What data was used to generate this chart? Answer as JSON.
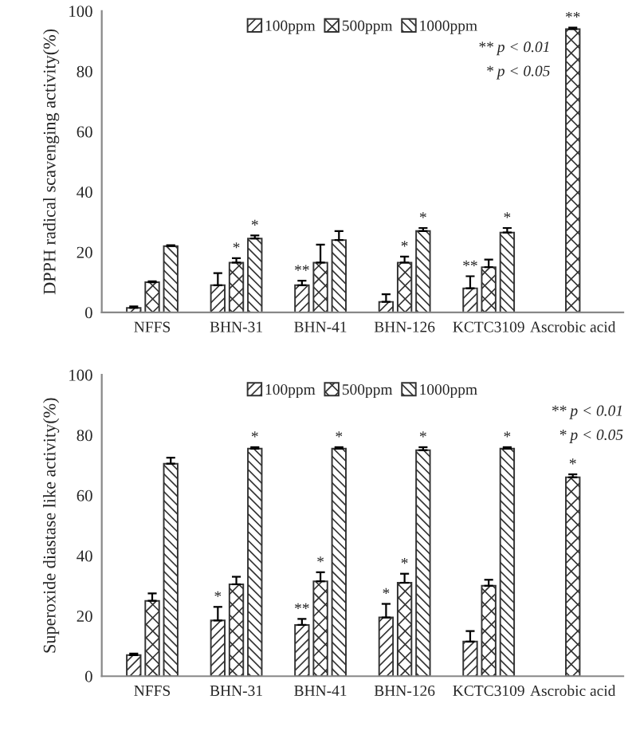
{
  "chart_data": [
    {
      "type": "bar",
      "ylabel": "DPPH radical scavenging activity(%)",
      "categories": [
        "NFFS",
        "BHN-31",
        "BHN-41",
        "BHN-126",
        "KCTC3109",
        "Ascrobic acid"
      ],
      "ylim": [
        0,
        100
      ],
      "yticks": [
        0,
        20,
        40,
        60,
        80,
        100
      ],
      "legend": "top",
      "grid": false,
      "series": [
        {
          "name": "100ppm",
          "color": "#333333",
          "values": [
            1.5,
            9,
            9,
            3.5,
            8,
            null
          ],
          "errors": [
            [
              1.5,
              2
            ],
            [
              9,
              13
            ],
            [
              9,
              10.5
            ],
            [
              3.5,
              6
            ],
            [
              8,
              12
            ],
            null
          ],
          "value_labels": [
            null,
            null,
            "**",
            null,
            "**",
            null
          ]
        },
        {
          "name": "500ppm",
          "color": "#333333",
          "values": [
            10,
            16.5,
            16.5,
            16.5,
            15,
            94
          ],
          "errors": [
            [
              10,
              10.3
            ],
            [
              16.5,
              18
            ],
            [
              16.5,
              22.5
            ],
            [
              16.5,
              18.5
            ],
            [
              15,
              17.5
            ],
            [
              94,
              94.5
            ]
          ],
          "value_labels": [
            null,
            "*",
            null,
            "*",
            null,
            "**"
          ]
        },
        {
          "name": "1000ppm",
          "color": "#333333",
          "values": [
            22,
            24.5,
            24,
            27,
            26.5,
            null
          ],
          "errors": [
            [
              22,
              22.3
            ],
            [
              24.5,
              25.5
            ],
            [
              24,
              27
            ],
            [
              27,
              28
            ],
            [
              26.5,
              28
            ],
            null
          ],
          "value_labels": [
            null,
            "*",
            null,
            "*",
            "*",
            null
          ]
        }
      ],
      "annotations": [
        "** p < 0.01",
        "* p < 0.05"
      ]
    },
    {
      "type": "bar",
      "ylabel": "Superoxide diastase like activity(%)",
      "categories": [
        "NFFS",
        "BHN-31",
        "BHN-41",
        "BHN-126",
        "KCTC3109",
        "Ascrobic acid"
      ],
      "ylim": [
        0,
        100
      ],
      "yticks": [
        0,
        20,
        40,
        60,
        80,
        100
      ],
      "legend": "top",
      "grid": false,
      "series": [
        {
          "name": "100ppm",
          "color": "#333333",
          "values": [
            7,
            18.5,
            17,
            19.5,
            11.5,
            null
          ],
          "errors": [
            [
              7,
              7.5
            ],
            [
              18.5,
              23
            ],
            [
              17,
              19
            ],
            [
              19.5,
              24
            ],
            [
              11.5,
              15
            ],
            null
          ],
          "value_labels": [
            null,
            "*",
            "**",
            "*",
            null,
            null
          ]
        },
        {
          "name": "500ppm",
          "color": "#333333",
          "values": [
            25,
            30.5,
            31.5,
            31,
            30,
            66
          ],
          "errors": [
            [
              25,
              27.5
            ],
            [
              30.5,
              33
            ],
            [
              31.5,
              34.5
            ],
            [
              31,
              34
            ],
            [
              30,
              32
            ],
            [
              66,
              67
            ]
          ],
          "value_labels": [
            null,
            null,
            "*",
            "*",
            null,
            "*"
          ]
        },
        {
          "name": "1000ppm",
          "color": "#333333",
          "values": [
            70.5,
            75.5,
            75.5,
            75,
            75.5,
            null
          ],
          "errors": [
            [
              70.5,
              72.5
            ],
            [
              75.5,
              76
            ],
            [
              75.5,
              76
            ],
            [
              75,
              76
            ],
            [
              75.5,
              76
            ],
            null
          ],
          "value_labels": [
            null,
            "*",
            "*",
            "*",
            "*",
            null
          ]
        }
      ],
      "annotations": [
        "** p < 0.01",
        "* p < 0.05"
      ]
    }
  ]
}
